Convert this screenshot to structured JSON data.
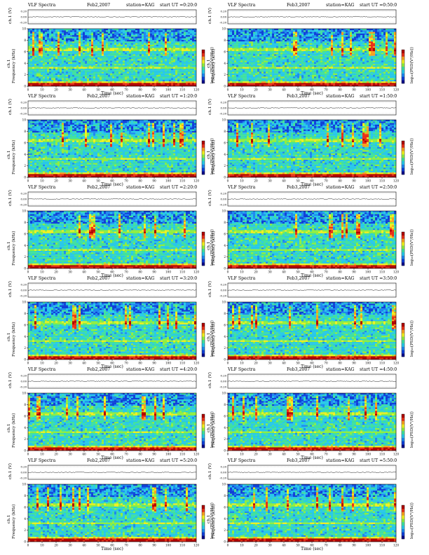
{
  "colors": {
    "colormap": [
      "#0a0a8c",
      "#1040d8",
      "#1e88f0",
      "#28c8e8",
      "#40e0a0",
      "#90ee40",
      "#f0f020",
      "#f8a020",
      "#e83018",
      "#b00000"
    ]
  },
  "common": {
    "plot_title": "VLF Spectra",
    "station": "station=KAG",
    "wave_label": "ch.1 (V)",
    "spec_label_top": "ch.1",
    "spec_label": "Frequency (kHz)",
    "xlabel": "Time (sec)",
    "colorbar_label": "log₁₀(PSD(V²/Hz))"
  },
  "chart_data": [
    {
      "type": "heatmap",
      "date": "Feb2,2007",
      "start": "start UT =0:20:0",
      "xlim": [
        0,
        120
      ],
      "ylim": [
        0,
        10
      ]
    },
    {
      "type": "heatmap",
      "date": "Feb3,2007",
      "start": "start UT =0:50:0",
      "xlim": [
        0,
        120
      ],
      "ylim": [
        0,
        10
      ]
    },
    {
      "type": "heatmap",
      "date": "Feb2,2007",
      "start": "start UT =1:20:0",
      "xlim": [
        0,
        120
      ],
      "ylim": [
        0,
        10
      ]
    },
    {
      "type": "heatmap",
      "date": "Feb3,2007",
      "start": "start UT =1:50:0",
      "xlim": [
        0,
        120
      ],
      "ylim": [
        0,
        10
      ]
    },
    {
      "type": "heatmap",
      "date": "Feb2,2007",
      "start": "start UT =2:20:0",
      "xlim": [
        0,
        120
      ],
      "ylim": [
        0,
        10
      ]
    },
    {
      "type": "heatmap",
      "date": "Feb3,2007",
      "start": "start UT =2:50:0",
      "xlim": [
        0,
        120
      ],
      "ylim": [
        0,
        10
      ]
    },
    {
      "type": "heatmap",
      "date": "Feb2,2007",
      "start": "start UT =3:20:0",
      "xlim": [
        0,
        120
      ],
      "ylim": [
        0,
        10
      ]
    },
    {
      "type": "heatmap",
      "date": "Feb3,2007",
      "start": "start UT =3:50:0",
      "xlim": [
        0,
        120
      ],
      "ylim": [
        0,
        10
      ]
    },
    {
      "type": "heatmap",
      "date": "Feb2,2007",
      "start": "start UT =4:20:0",
      "xlim": [
        0,
        120
      ],
      "ylim": [
        0,
        10
      ]
    },
    {
      "type": "heatmap",
      "date": "Feb3,2007",
      "start": "start UT =4:50:0",
      "xlim": [
        0,
        120
      ],
      "ylim": [
        0,
        10
      ]
    },
    {
      "type": "heatmap",
      "date": "Feb2,2007",
      "start": "start UT =5:20:0",
      "xlim": [
        0,
        120
      ],
      "ylim": [
        0,
        10
      ]
    },
    {
      "type": "heatmap",
      "date": "Feb3,2007",
      "start": "start UT =5:50:0",
      "xlim": [
        0,
        120
      ],
      "ylim": [
        0,
        10
      ]
    }
  ],
  "axes": {
    "x_ticks": [
      "0",
      "10",
      "20",
      "30",
      "40",
      "50",
      "60",
      "70",
      "80",
      "90",
      "100",
      "110",
      "120"
    ],
    "y_ticks": [
      "0",
      "2",
      "4",
      "6",
      "8",
      "10"
    ],
    "wave_ticks": [
      "0.20",
      "0.00",
      "-0.20"
    ]
  }
}
